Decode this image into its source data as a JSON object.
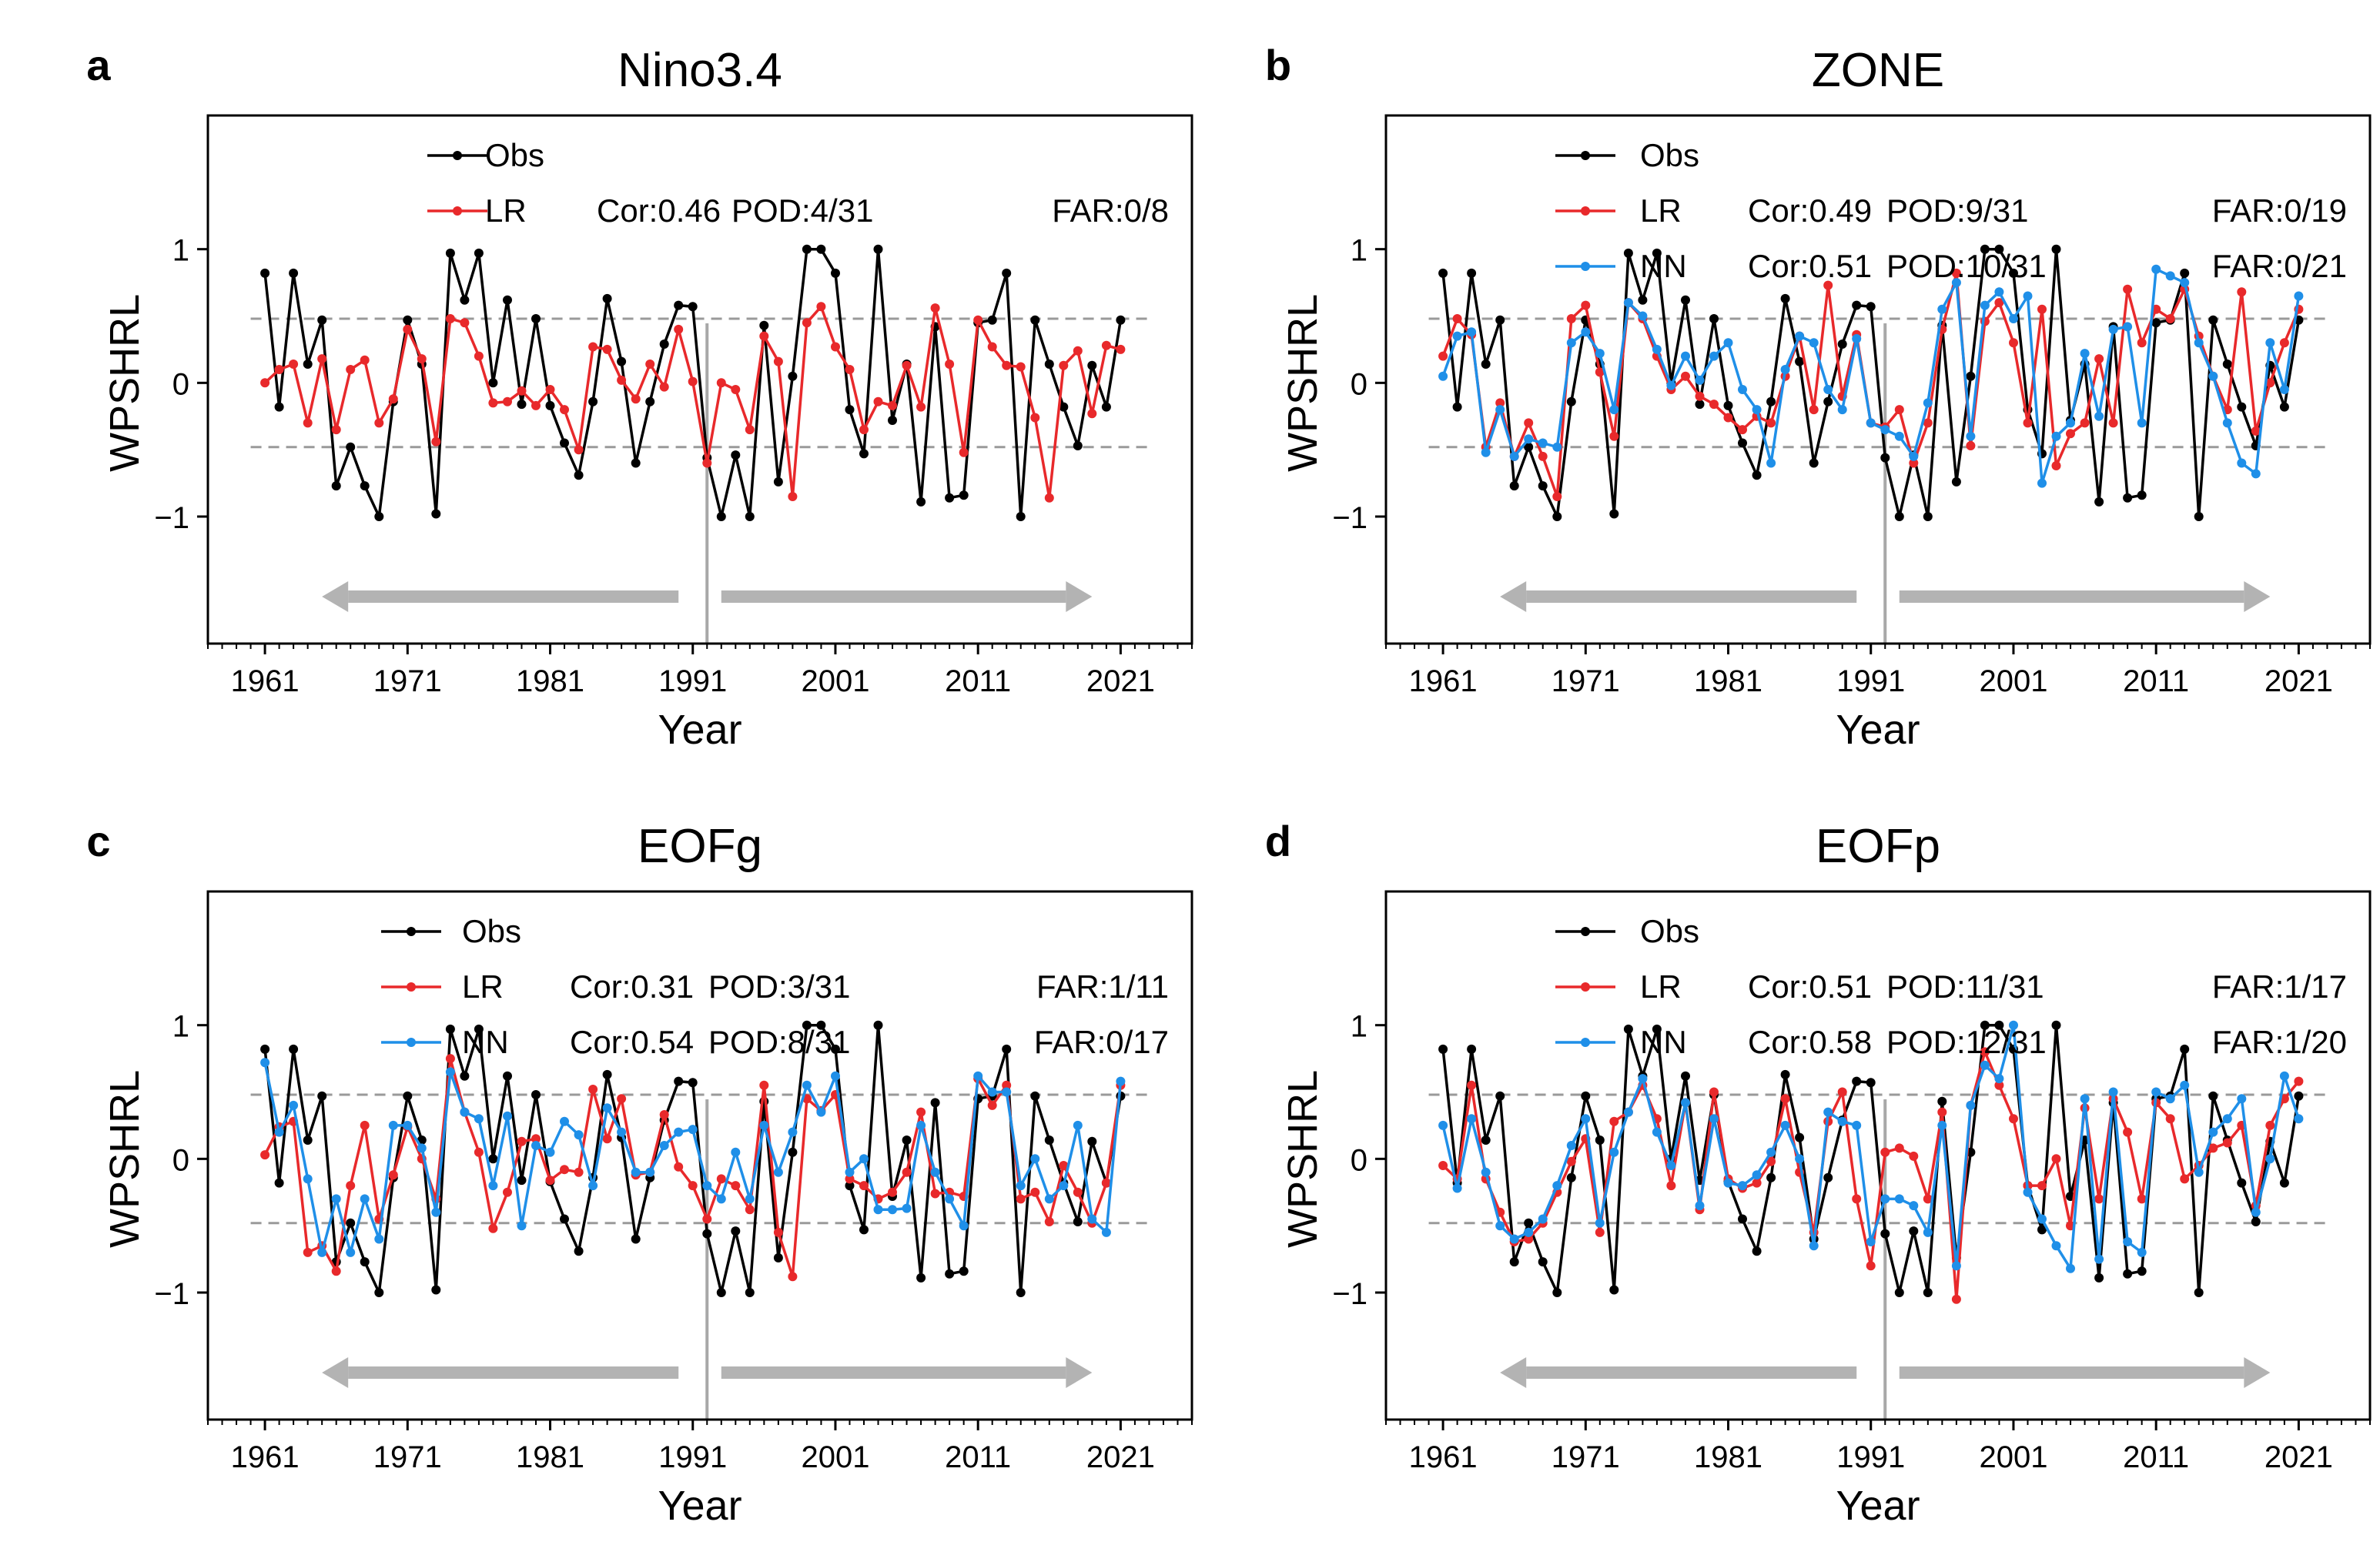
{
  "figure": {
    "panels": [
      {
        "letter": "a",
        "title": "Nino3.4",
        "ylabel": "WPSHRL",
        "xlabel": "Year",
        "legend": [
          {
            "label": "Obs",
            "cor": "",
            "pod": "",
            "far": ""
          },
          {
            "label": "LR",
            "cor": "Cor:0.46",
            "pod": "POD:4/31",
            "far": "FAR:0/8"
          }
        ]
      },
      {
        "letter": "b",
        "title": "ZONE",
        "ylabel": "WPSHRL",
        "xlabel": "Year",
        "legend": [
          {
            "label": "Obs",
            "cor": "",
            "pod": "",
            "far": ""
          },
          {
            "label": "LR",
            "cor": "Cor:0.49",
            "pod": "POD:9/31",
            "far": "FAR:0/19"
          },
          {
            "label": "NN",
            "cor": "Cor:0.51",
            "pod": "POD:10/31",
            "far": "FAR:0/21"
          }
        ]
      },
      {
        "letter": "c",
        "title": "EOFg",
        "ylabel": "WPSHRL",
        "xlabel": "Year",
        "legend": [
          {
            "label": "Obs",
            "cor": "",
            "pod": "",
            "far": ""
          },
          {
            "label": "LR",
            "cor": "Cor:0.31",
            "pod": "POD:3/31",
            "far": "FAR:1/11"
          },
          {
            "label": "NN",
            "cor": "Cor:0.54",
            "pod": "POD:8/31",
            "far": "FAR:0/17"
          }
        ]
      },
      {
        "letter": "d",
        "title": "EOFp",
        "ylabel": "WPSHRL",
        "xlabel": "Year",
        "legend": [
          {
            "label": "Obs",
            "cor": "",
            "pod": "",
            "far": ""
          },
          {
            "label": "LR",
            "cor": "Cor:0.51",
            "pod": "POD:11/31",
            "far": "FAR:1/17"
          },
          {
            "label": "NN",
            "cor": "Cor:0.58",
            "pod": "POD:12/31",
            "far": "FAR:1/20"
          }
        ]
      }
    ]
  },
  "chart_data": [
    {
      "type": "line",
      "panel": "a",
      "title": "Nino3.4",
      "xlabel": "Year",
      "ylabel": "WPSHRL",
      "x_start": 1961,
      "xlim": [
        1957,
        2026
      ],
      "ylim": [
        -1.95,
        2.0
      ],
      "xticks": [
        1961,
        1971,
        1981,
        1991,
        2001,
        2011,
        2021
      ],
      "yticks": [
        -1,
        0,
        1
      ],
      "threshold_lines": [
        0.48,
        -0.48
      ],
      "split_year": 1992,
      "arrows": [
        {
          "from": 1990,
          "to": 1965
        },
        {
          "from": 1993,
          "to": 2019
        }
      ],
      "series": [
        {
          "name": "Obs",
          "color": "#000000",
          "values": [
            0.82,
            -0.18,
            0.82,
            0.14,
            0.47,
            -0.77,
            -0.48,
            -0.77,
            -1.0,
            -0.14,
            0.47,
            0.14,
            -0.98,
            0.97,
            0.62,
            0.97,
            0.0,
            0.62,
            -0.16,
            0.48,
            -0.17,
            -0.45,
            -0.69,
            -0.14,
            0.63,
            0.16,
            -0.6,
            -0.14,
            0.29,
            0.58,
            0.57,
            -0.56,
            -1.0,
            -0.54,
            -1.0,
            0.43,
            -0.74,
            0.05,
            1.0,
            1.0,
            0.82,
            -0.2,
            -0.53,
            1.0,
            -0.28,
            0.14,
            -0.89,
            0.42,
            -0.86,
            -0.84,
            0.45,
            0.47,
            0.82,
            -1.0,
            0.47,
            0.14,
            -0.18,
            -0.47,
            0.13,
            -0.18,
            0.47
          ]
        },
        {
          "name": "LR",
          "color": "#e8292b",
          "values": [
            0.0,
            0.1,
            0.14,
            -0.3,
            0.18,
            -0.35,
            0.1,
            0.17,
            -0.3,
            -0.12,
            0.4,
            0.18,
            -0.44,
            0.48,
            0.45,
            0.2,
            -0.15,
            -0.14,
            -0.06,
            -0.17,
            -0.05,
            -0.2,
            -0.5,
            0.27,
            0.25,
            0.02,
            -0.12,
            0.14,
            -0.03,
            0.4,
            0.01,
            -0.6,
            0.0,
            -0.05,
            -0.35,
            0.35,
            0.16,
            -0.85,
            0.45,
            0.57,
            0.27,
            0.1,
            -0.35,
            -0.14,
            -0.17,
            0.13,
            -0.18,
            0.56,
            0.14,
            -0.52,
            0.47,
            0.27,
            0.13,
            0.12,
            -0.26,
            -0.86,
            0.13,
            0.24,
            -0.23,
            0.28,
            0.25
          ]
        }
      ]
    },
    {
      "type": "line",
      "panel": "b",
      "title": "ZONE",
      "xlabel": "Year",
      "ylabel": "WPSHRL",
      "x_start": 1961,
      "xlim": [
        1957,
        2026
      ],
      "ylim": [
        -1.95,
        2.0
      ],
      "xticks": [
        1961,
        1971,
        1981,
        1991,
        2001,
        2011,
        2021
      ],
      "yticks": [
        -1,
        0,
        1
      ],
      "threshold_lines": [
        0.48,
        -0.48
      ],
      "split_year": 1992,
      "arrows": [
        {
          "from": 1990,
          "to": 1965
        },
        {
          "from": 1993,
          "to": 2019
        }
      ],
      "series": [
        {
          "name": "Obs",
          "color": "#000000",
          "values": [
            0.82,
            -0.18,
            0.82,
            0.14,
            0.47,
            -0.77,
            -0.48,
            -0.77,
            -1.0,
            -0.14,
            0.47,
            0.14,
            -0.98,
            0.97,
            0.62,
            0.97,
            0.0,
            0.62,
            -0.16,
            0.48,
            -0.17,
            -0.45,
            -0.69,
            -0.14,
            0.63,
            0.16,
            -0.6,
            -0.14,
            0.29,
            0.58,
            0.57,
            -0.56,
            -1.0,
            -0.54,
            -1.0,
            0.43,
            -0.74,
            0.05,
            1.0,
            1.0,
            0.82,
            -0.2,
            -0.53,
            1.0,
            -0.28,
            0.14,
            -0.89,
            0.42,
            -0.86,
            -0.84,
            0.45,
            0.47,
            0.82,
            -1.0,
            0.47,
            0.14,
            -0.18,
            -0.47,
            0.13,
            -0.18,
            0.47
          ]
        },
        {
          "name": "LR",
          "color": "#e8292b",
          "values": [
            0.2,
            0.48,
            0.36,
            -0.48,
            -0.15,
            -0.55,
            -0.3,
            -0.55,
            -0.85,
            0.48,
            0.58,
            0.08,
            -0.4,
            0.6,
            0.48,
            0.2,
            -0.05,
            0.05,
            -0.1,
            -0.16,
            -0.26,
            -0.35,
            -0.25,
            -0.3,
            0.05,
            0.35,
            -0.2,
            0.73,
            -0.1,
            0.36,
            -0.3,
            -0.33,
            -0.2,
            -0.6,
            -0.3,
            0.4,
            0.82,
            -0.47,
            0.46,
            0.6,
            0.3,
            -0.3,
            0.55,
            -0.62,
            -0.38,
            -0.3,
            0.18,
            -0.3,
            0.7,
            0.3,
            0.55,
            0.48,
            0.7,
            0.35,
            0.05,
            -0.2,
            0.68,
            -0.36,
            0.0,
            0.3,
            0.55
          ]
        },
        {
          "name": "NN",
          "color": "#1f8fe8",
          "values": [
            0.05,
            0.35,
            0.38,
            -0.52,
            -0.2,
            -0.55,
            -0.42,
            -0.45,
            -0.48,
            0.3,
            0.38,
            0.22,
            -0.2,
            0.6,
            0.5,
            0.25,
            -0.02,
            0.2,
            0.02,
            0.2,
            0.3,
            -0.05,
            -0.2,
            -0.6,
            0.1,
            0.35,
            0.3,
            -0.05,
            -0.2,
            0.33,
            -0.3,
            -0.35,
            -0.4,
            -0.55,
            -0.15,
            0.55,
            0.75,
            -0.4,
            0.58,
            0.68,
            0.48,
            0.65,
            -0.75,
            -0.4,
            -0.3,
            0.22,
            -0.25,
            0.4,
            0.42,
            -0.3,
            0.85,
            0.8,
            0.75,
            0.3,
            0.05,
            -0.3,
            -0.6,
            -0.68,
            0.3,
            -0.05,
            0.65
          ]
        }
      ]
    },
    {
      "type": "line",
      "panel": "c",
      "title": "EOFg",
      "xlabel": "Year",
      "ylabel": "WPSHRL",
      "x_start": 1961,
      "xlim": [
        1957,
        2026
      ],
      "ylim": [
        -1.95,
        2.0
      ],
      "xticks": [
        1961,
        1971,
        1981,
        1991,
        2001,
        2011,
        2021
      ],
      "yticks": [
        -1,
        0,
        1
      ],
      "threshold_lines": [
        0.48,
        -0.48
      ],
      "split_year": 1992,
      "arrows": [
        {
          "from": 1990,
          "to": 1965
        },
        {
          "from": 1993,
          "to": 2019
        }
      ],
      "series": [
        {
          "name": "Obs",
          "color": "#000000",
          "values": [
            0.82,
            -0.18,
            0.82,
            0.14,
            0.47,
            -0.77,
            -0.48,
            -0.77,
            -1.0,
            -0.14,
            0.47,
            0.14,
            -0.98,
            0.97,
            0.62,
            0.97,
            0.0,
            0.62,
            -0.16,
            0.48,
            -0.17,
            -0.45,
            -0.69,
            -0.14,
            0.63,
            0.16,
            -0.6,
            -0.14,
            0.29,
            0.58,
            0.57,
            -0.56,
            -1.0,
            -0.54,
            -1.0,
            0.43,
            -0.74,
            0.05,
            1.0,
            1.0,
            0.82,
            -0.2,
            -0.53,
            1.0,
            -0.28,
            0.14,
            -0.89,
            0.42,
            -0.86,
            -0.84,
            0.45,
            0.47,
            0.82,
            -1.0,
            0.47,
            0.14,
            -0.18,
            -0.47,
            0.13,
            -0.18,
            0.47
          ]
        },
        {
          "name": "LR",
          "color": "#e8292b",
          "values": [
            0.03,
            0.24,
            0.28,
            -0.7,
            -0.65,
            -0.84,
            -0.2,
            0.25,
            -0.45,
            -0.12,
            0.24,
            0.0,
            -0.3,
            0.75,
            0.35,
            0.05,
            -0.52,
            -0.25,
            0.13,
            0.15,
            -0.16,
            -0.08,
            -0.1,
            0.52,
            0.15,
            0.45,
            -0.12,
            -0.1,
            0.33,
            -0.06,
            -0.2,
            -0.45,
            -0.15,
            -0.2,
            -0.38,
            0.55,
            -0.55,
            -0.88,
            0.45,
            0.36,
            0.48,
            -0.15,
            -0.2,
            -0.3,
            -0.25,
            -0.1,
            0.35,
            -0.26,
            -0.25,
            -0.28,
            0.6,
            0.4,
            0.55,
            -0.3,
            -0.25,
            -0.47,
            -0.05,
            -0.25,
            -0.48,
            -0.18,
            0.55
          ]
        },
        {
          "name": "NN",
          "color": "#1f8fe8",
          "values": [
            0.72,
            0.2,
            0.4,
            -0.15,
            -0.7,
            -0.3,
            -0.7,
            -0.3,
            -0.6,
            0.25,
            0.25,
            0.08,
            -0.4,
            0.65,
            0.35,
            0.3,
            -0.2,
            0.32,
            -0.5,
            0.1,
            0.05,
            0.28,
            0.18,
            -0.2,
            0.38,
            0.2,
            -0.1,
            -0.1,
            0.1,
            0.2,
            0.22,
            -0.2,
            -0.3,
            0.05,
            -0.3,
            0.25,
            -0.1,
            0.2,
            0.55,
            0.35,
            0.62,
            -0.1,
            0.0,
            -0.38,
            -0.38,
            -0.37,
            0.25,
            -0.1,
            -0.3,
            -0.5,
            0.62,
            0.5,
            0.5,
            -0.2,
            0.0,
            -0.3,
            -0.2,
            0.25,
            -0.45,
            -0.55,
            0.58
          ]
        }
      ]
    },
    {
      "type": "line",
      "panel": "d",
      "title": "EOFp",
      "xlabel": "Year",
      "ylabel": "WPSHRL",
      "x_start": 1961,
      "xlim": [
        1957,
        2026
      ],
      "ylim": [
        -1.95,
        2.0
      ],
      "xticks": [
        1961,
        1971,
        1981,
        1991,
        2001,
        2011,
        2021
      ],
      "yticks": [
        -1,
        0,
        1
      ],
      "threshold_lines": [
        0.48,
        -0.48
      ],
      "split_year": 1992,
      "arrows": [
        {
          "from": 1990,
          "to": 1965
        },
        {
          "from": 1993,
          "to": 2019
        }
      ],
      "series": [
        {
          "name": "Obs",
          "color": "#000000",
          "values": [
            0.82,
            -0.18,
            0.82,
            0.14,
            0.47,
            -0.77,
            -0.48,
            -0.77,
            -1.0,
            -0.14,
            0.47,
            0.14,
            -0.98,
            0.97,
            0.62,
            0.97,
            0.0,
            0.62,
            -0.16,
            0.48,
            -0.17,
            -0.45,
            -0.69,
            -0.14,
            0.63,
            0.16,
            -0.6,
            -0.14,
            0.29,
            0.58,
            0.57,
            -0.56,
            -1.0,
            -0.54,
            -1.0,
            0.43,
            -0.74,
            0.05,
            1.0,
            1.0,
            0.82,
            -0.2,
            -0.53,
            1.0,
            -0.28,
            0.14,
            -0.89,
            0.42,
            -0.86,
            -0.84,
            0.45,
            0.47,
            0.82,
            -1.0,
            0.47,
            0.14,
            -0.18,
            -0.47,
            0.13,
            -0.18,
            0.47
          ]
        },
        {
          "name": "LR",
          "color": "#e8292b",
          "values": [
            -0.05,
            -0.15,
            0.55,
            -0.15,
            -0.4,
            -0.62,
            -0.6,
            -0.48,
            -0.25,
            -0.02,
            0.15,
            -0.55,
            0.28,
            0.35,
            0.55,
            0.3,
            -0.2,
            0.42,
            -0.38,
            0.5,
            -0.15,
            -0.22,
            -0.18,
            -0.02,
            0.45,
            -0.1,
            -0.55,
            0.28,
            0.5,
            -0.3,
            -0.8,
            0.05,
            0.08,
            0.02,
            -0.3,
            0.35,
            -1.05,
            0.4,
            0.8,
            0.55,
            0.3,
            -0.2,
            -0.2,
            0.0,
            -0.5,
            0.38,
            -0.3,
            0.45,
            0.2,
            -0.3,
            0.42,
            0.3,
            -0.15,
            -0.05,
            0.08,
            0.12,
            0.25,
            -0.35,
            0.25,
            0.45,
            0.58
          ]
        },
        {
          "name": "NN",
          "color": "#1f8fe8",
          "values": [
            0.25,
            -0.22,
            0.3,
            -0.1,
            -0.5,
            -0.6,
            -0.55,
            -0.45,
            -0.2,
            0.1,
            0.3,
            -0.48,
            0.05,
            0.35,
            0.6,
            0.2,
            -0.05,
            0.42,
            -0.35,
            0.3,
            -0.18,
            -0.2,
            -0.12,
            0.05,
            0.25,
            0.0,
            -0.65,
            0.35,
            0.28,
            0.25,
            -0.62,
            -0.3,
            -0.3,
            -0.35,
            -0.55,
            0.25,
            -0.8,
            0.4,
            0.7,
            0.6,
            1.0,
            -0.25,
            -0.45,
            -0.65,
            -0.82,
            0.45,
            -0.75,
            0.5,
            -0.62,
            -0.7,
            0.5,
            0.45,
            0.55,
            -0.1,
            0.2,
            0.3,
            0.45,
            -0.4,
            0.0,
            0.62,
            0.3
          ]
        }
      ]
    }
  ]
}
